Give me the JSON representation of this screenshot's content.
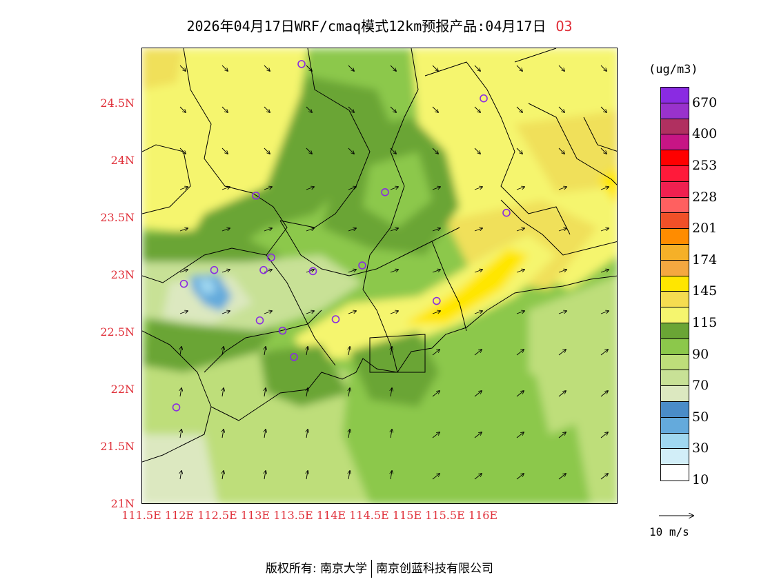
{
  "title": {
    "main": "2026年04月17日WRF/cmaq模式12km预报产品:04月17日",
    "variable": "O3"
  },
  "axes": {
    "y_ticks": [
      "24.5N",
      "24N",
      "23.5N",
      "23N",
      "22.5N",
      "22N",
      "21.5N",
      "21N"
    ],
    "x_ticks": [
      "111.5E",
      "112E",
      "112.5E",
      "113E",
      "113.5E",
      "114E",
      "114.5E",
      "115E",
      "115.5E",
      "116E"
    ]
  },
  "legend": {
    "units": "(ug/m3)",
    "colors": [
      "#8a2be2",
      "#9932cc",
      "#b03060",
      "#c71585",
      "#ff0000",
      "#ff1a3a",
      "#f02050",
      "#ff6060",
      "#f05028",
      "#ff8c00",
      "#f5b028",
      "#f5a840",
      "#ffe600",
      "#f5dc50",
      "#f5f56e",
      "#6aa535",
      "#8cc84b",
      "#bede7a",
      "#c8e196",
      "#dce8c0",
      "#4a8cc8",
      "#64aadc",
      "#a0d8f0",
      "#d2eef8",
      "#ffffff"
    ],
    "labels": [
      "670",
      "400",
      "253",
      "228",
      "201",
      "174",
      "145",
      "115",
      "90",
      "70",
      "50",
      "30",
      "10"
    ]
  },
  "reference_vector": {
    "label": "10 m/s"
  },
  "footer": {
    "left": "版权所有: 南京大学",
    "right": "南京创蓝科技有限公司"
  },
  "stations": [
    {
      "lon": 113.6,
      "lat": 24.85
    },
    {
      "lon": 116.0,
      "lat": 24.55
    },
    {
      "lon": 113.0,
      "lat": 23.7
    },
    {
      "lon": 114.7,
      "lat": 23.73
    },
    {
      "lon": 116.3,
      "lat": 23.55
    },
    {
      "lon": 112.45,
      "lat": 23.05
    },
    {
      "lon": 113.1,
      "lat": 23.05
    },
    {
      "lon": 113.2,
      "lat": 23.16
    },
    {
      "lon": 113.75,
      "lat": 23.04
    },
    {
      "lon": 114.4,
      "lat": 23.09
    },
    {
      "lon": 112.05,
      "lat": 22.93
    },
    {
      "lon": 115.38,
      "lat": 22.78
    },
    {
      "lon": 113.05,
      "lat": 22.61
    },
    {
      "lon": 113.35,
      "lat": 22.52
    },
    {
      "lon": 114.05,
      "lat": 22.62
    },
    {
      "lon": 113.5,
      "lat": 22.29
    },
    {
      "lon": 111.95,
      "lat": 21.85
    }
  ]
}
